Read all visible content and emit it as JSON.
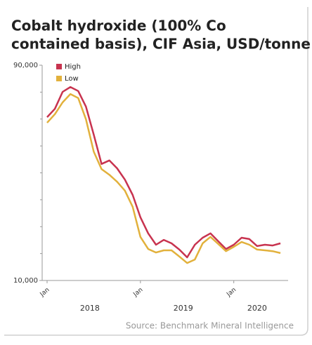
{
  "chart_data": {
    "type": "line",
    "title": [
      "Cobalt hydroxide (100% Co",
      "contained basis), CIF Asia, USD/tonne"
    ],
    "source": "Source: Benchmark Mineral Intelligence",
    "categories": [
      "Jan",
      null,
      null,
      null,
      null,
      null,
      null,
      null,
      null,
      null,
      null,
      null,
      "Jan",
      null,
      null,
      null,
      null,
      null,
      null,
      null,
      null,
      null,
      null,
      null,
      "Jan",
      null,
      null,
      null,
      null,
      null,
      null
    ],
    "groups": [
      {
        "name": "2018",
        "from": 0,
        "to": 11
      },
      {
        "name": "2019",
        "from": 12,
        "to": 23
      },
      {
        "name": "2020",
        "from": 24,
        "to": 30
      }
    ],
    "series": [
      {
        "name": "High",
        "color": "#c8334f",
        "values": [
          70700,
          73800,
          80100,
          81900,
          80400,
          74600,
          64200,
          53300,
          54600,
          51700,
          47500,
          41800,
          33500,
          27500,
          23300,
          25100,
          23800,
          21500,
          18600,
          23300,
          25900,
          27500,
          24600,
          21700,
          23300,
          25900,
          25400,
          22800,
          23300,
          23000,
          23800
        ]
      },
      {
        "name": "Low",
        "color": "#e2b13c",
        "values": [
          68600,
          71800,
          76200,
          79300,
          77800,
          69900,
          57900,
          51400,
          49300,
          46700,
          43400,
          37400,
          26200,
          21700,
          20400,
          21200,
          21200,
          18900,
          16500,
          17800,
          23800,
          26200,
          23600,
          20900,
          22500,
          24300,
          23300,
          21500,
          21200,
          20900,
          20200
        ]
      }
    ],
    "ylim": [
      10000,
      90000
    ],
    "yticks": [
      {
        "value": 10000,
        "label": "10,000"
      },
      {
        "value": 90000,
        "label": "90,000"
      }
    ],
    "y_minor_ticks": [
      20000,
      30000,
      40000,
      50000,
      60000,
      70000,
      80000
    ],
    "legend": "top-left"
  }
}
